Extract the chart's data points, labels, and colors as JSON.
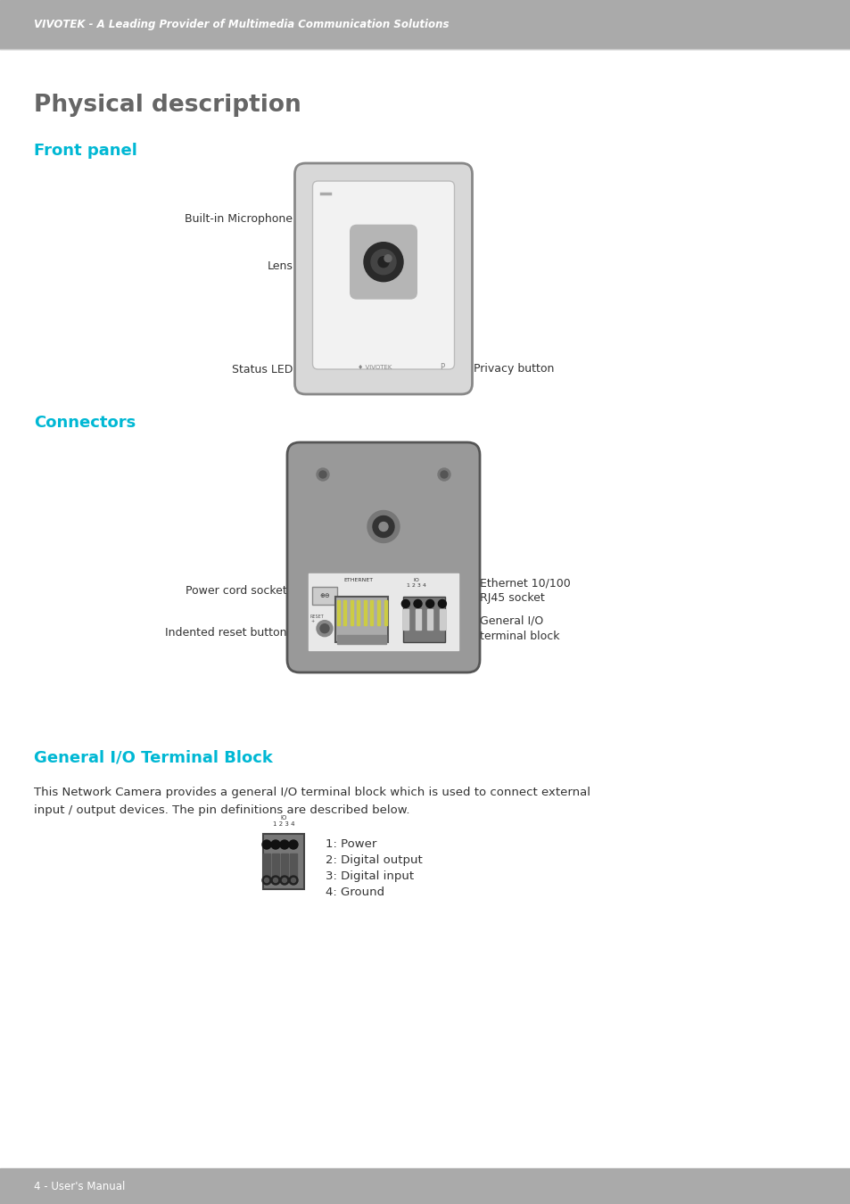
{
  "header_bg": "#aaaaaa",
  "header_text": "VIVOTEK - A Leading Provider of Multimedia Communication Solutions",
  "header_text_color": "#ffffff",
  "page_bg": "#ffffff",
  "footer_bg": "#aaaaaa",
  "footer_text": "4 - User's Manual",
  "footer_text_color": "#ffffff",
  "title_physical": "Physical description",
  "title_front_panel": "Front panel",
  "title_connectors": "Connectors",
  "title_general_io": "General I/O Terminal Block",
  "cyan_color": "#00b8d4",
  "title_color": "#666666",
  "body_text_color": "#333333",
  "general_io_body_1": "This Network Camera provides a general I/O terminal block which is used to connect external",
  "general_io_body_2": "input / output devices. The pin definitions are described below.",
  "pin_definitions": [
    "1: Power",
    "2: Digital output",
    "3: Digital input",
    "4: Ground"
  ]
}
